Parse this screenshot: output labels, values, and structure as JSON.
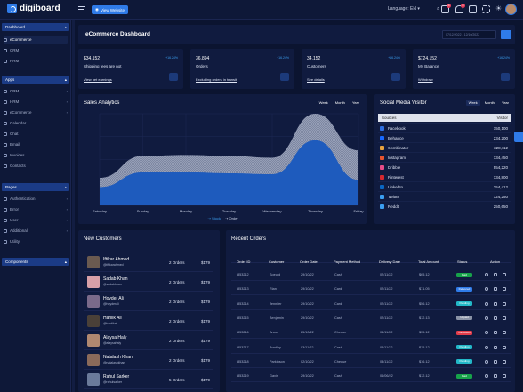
{
  "brand": {
    "name": "digiboard",
    "accent": "#2f7be8"
  },
  "topbar": {
    "view_website": "View Website",
    "language": "Language: EN",
    "notif_counts": [
      "3",
      "5"
    ]
  },
  "sidebar": {
    "sections": [
      {
        "title": "Dashboard",
        "items": [
          "eCommerce",
          "CRM",
          "HRM"
        ]
      },
      {
        "title": "Apps",
        "items": [
          "CRM",
          "HRM",
          "eCommerce",
          "Calendar",
          "Chat",
          "Email",
          "Invoices",
          "Contacts"
        ]
      },
      {
        "title": "Pages",
        "items": [
          "Authentication",
          "Error",
          "User",
          "Additional",
          "Utility"
        ]
      },
      {
        "title": "Components",
        "items": []
      }
    ]
  },
  "header": {
    "title": "eCommerce Dashboard",
    "date_range": "07/12/2022 - 12/10/2022"
  },
  "kpis": [
    {
      "value": "$34,152",
      "pct": "+16.24%",
      "label": "Shipping fees are not",
      "link": "View net earnings"
    },
    {
      "value": "36,894",
      "pct": "+16.24%",
      "label": "Orders",
      "link": "Excluding orders in transit"
    },
    {
      "value": "34,152",
      "pct": "+16.24%",
      "label": "Customers",
      "link": "See details"
    },
    {
      "value": "$724,152",
      "pct": "+16.24%",
      "label": "My Balance",
      "link": "Withdraw"
    }
  ],
  "sales": {
    "title": "Sales Analytics",
    "tabs": [
      "Week",
      "Month",
      "Year"
    ]
  },
  "chart_data": {
    "type": "area",
    "categories": [
      "Saturday",
      "Sunday",
      "Monday",
      "Tuesday",
      "Wednesday",
      "Thursday",
      "Friday"
    ],
    "series": [
      {
        "name": "Stock",
        "color": "#1e5bbd",
        "values": [
          20,
          36,
          36,
          35,
          34,
          71,
          28
        ]
      },
      {
        "name": "Order",
        "color": "#8a93b0",
        "values": [
          30,
          54,
          55,
          54,
          52,
          100,
          60
        ]
      }
    ],
    "ylim": [
      0,
      100
    ],
    "legend": "bottom",
    "grid": true
  },
  "social": {
    "title": "Social Media Visitor",
    "tabs": [
      "Week",
      "Month",
      "Year"
    ],
    "headers": [
      "Sources",
      "Visitor"
    ],
    "rows": [
      {
        "name": "Facebook",
        "value": "150,100",
        "color": "#2f6fe0"
      },
      {
        "name": "Behance",
        "value": "234,200",
        "color": "#1769ff"
      },
      {
        "name": "Combinator",
        "value": "328,112",
        "color": "#e8a33e"
      },
      {
        "name": "Instagram",
        "value": "134,450",
        "color": "#e8542f"
      },
      {
        "name": "Dribble",
        "value": "554,220",
        "color": "#e84c88"
      },
      {
        "name": "Pinterest",
        "value": "134,800",
        "color": "#d4282f"
      },
      {
        "name": "LinkedIn",
        "value": "254,412",
        "color": "#0a66c2"
      },
      {
        "name": "Twitter",
        "value": "124,250",
        "color": "#3b9ef0"
      },
      {
        "name": "Reddit",
        "value": "250,650",
        "color": "#3b9ef0"
      }
    ]
  },
  "customers": {
    "title": "New Customers",
    "rows": [
      {
        "name": "Iftikar Ahmed",
        "user": "@iftikarahmed",
        "orders": "2 Orders",
        "amount": "$179",
        "av": "#6a5a50"
      },
      {
        "name": "Sadab Khan",
        "user": "@sadabkhan",
        "orders": "2 Orders",
        "amount": "$179",
        "av": "#d8a0a8"
      },
      {
        "name": "Hoyder Ali",
        "user": "@hoyderali",
        "orders": "2 Orders",
        "amount": "$179",
        "av": "#7a6a8a"
      },
      {
        "name": "Hanlik Ali",
        "user": "@hanlikali",
        "orders": "2 Orders",
        "amount": "$179",
        "av": "#4a4038"
      },
      {
        "name": "Alaysa Haly",
        "user": "@alaysahaly",
        "orders": "2 Orders",
        "amount": "$179",
        "av": "#b08870"
      },
      {
        "name": "Natalash Khan",
        "user": "@natalashkhan",
        "orders": "2 Orders",
        "amount": "$179",
        "av": "#8a6a5a"
      },
      {
        "name": "Rahul Sarker",
        "user": "@rahulsarker",
        "orders": "5 Orders",
        "amount": "$179",
        "av": "#6a7a9a"
      }
    ]
  },
  "orders": {
    "title": "Recent Orders",
    "headers": [
      "Order ID",
      "Customer",
      "Order Date",
      "Payment Method",
      "Delivery Date",
      "Total Amount",
      "Status",
      "Action"
    ],
    "rows": [
      {
        "id": "853212",
        "cust": "Soeurd",
        "date": "29/10/22",
        "pay": "Cash",
        "del": "02/11/22",
        "amt": "$65.12",
        "status": "Paid",
        "sc": "#17a34a"
      },
      {
        "id": "853213",
        "cust": "Rian",
        "date": "29/10/22",
        "pay": "Card",
        "del": "02/11/22",
        "amt": "$71.05",
        "status": "Delivered",
        "sc": "#2f7be8"
      },
      {
        "id": "853214",
        "cust": "Jennifer",
        "date": "29/10/22",
        "pay": "Card",
        "del": "02/11/22",
        "amt": "$56.12",
        "status": "Pending",
        "sc": "#22b8c8"
      },
      {
        "id": "853215",
        "cust": "Benjamin",
        "date": "29/10/22",
        "pay": "Cash",
        "del": "02/11/22",
        "amt": "$12.13",
        "status": "Unpaid",
        "sc": "#8a93a6"
      },
      {
        "id": "853216",
        "cust": "Anos",
        "date": "25/10/22",
        "pay": "Cheque",
        "del": "04/11/22",
        "amt": "$35.12",
        "status": "Cancelled",
        "sc": "#e23d4b"
      },
      {
        "id": "853217",
        "cust": "Bradley",
        "date": "03/11/22",
        "pay": "Cash",
        "del": "04/11/22",
        "amt": "$15.12",
        "status": "Pending",
        "sc": "#22b8c8"
      },
      {
        "id": "853218",
        "cust": "Parkinson",
        "date": "02/10/22",
        "pay": "Cheque",
        "del": "03/11/22",
        "amt": "$16.12",
        "status": "Pending",
        "sc": "#22b8c8"
      },
      {
        "id": "853219",
        "cust": "Gavin",
        "date": "29/10/22",
        "pay": "Cash",
        "del": "06/06/22",
        "amt": "$12.12",
        "status": "Paid",
        "sc": "#17a34a"
      }
    ]
  }
}
